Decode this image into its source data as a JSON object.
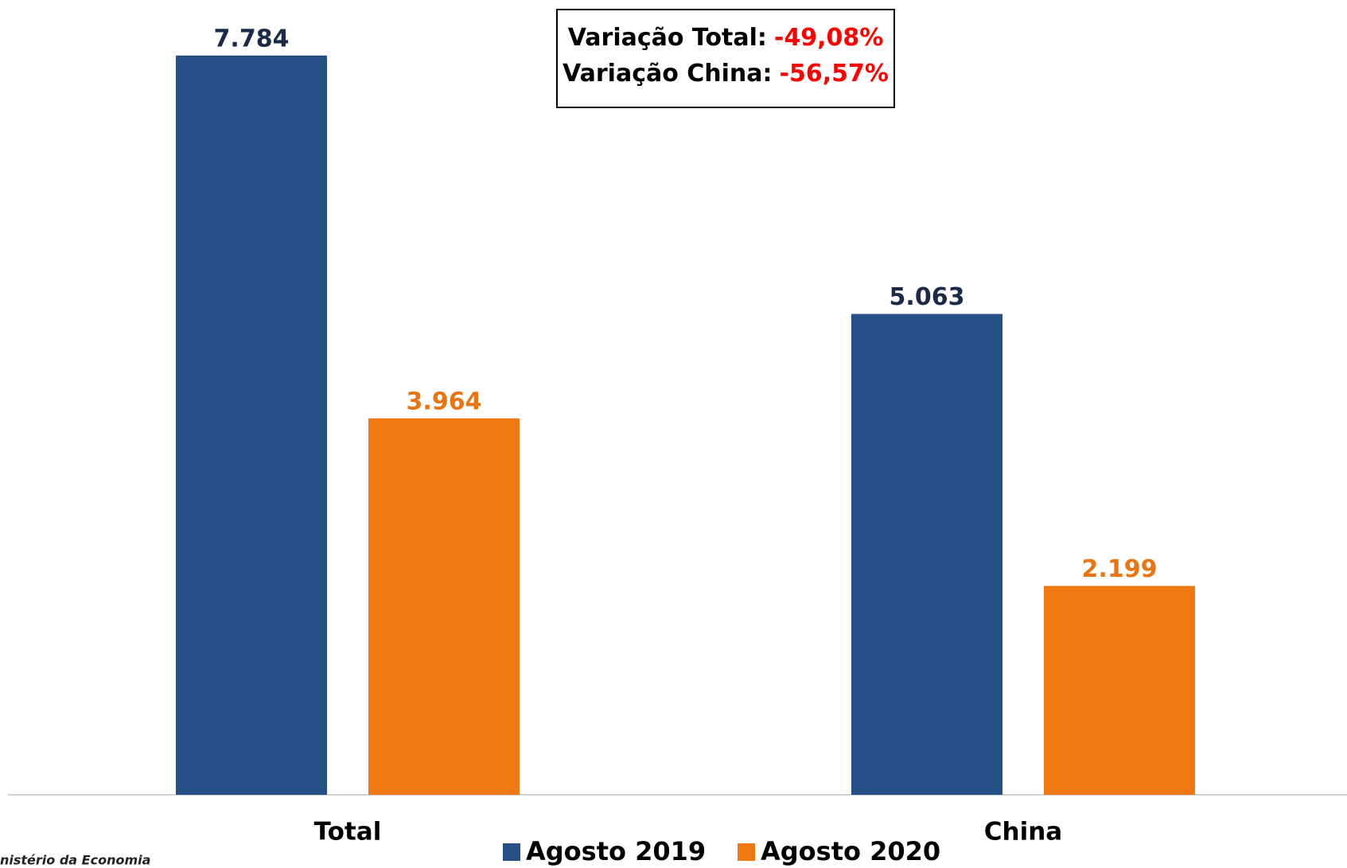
{
  "chart_data": {
    "type": "bar",
    "categories": [
      "Total",
      "China"
    ],
    "series": [
      {
        "name": "Agosto 2019",
        "color": "#265085",
        "label_color": "#1b2a47",
        "values": [
          7784,
          5063
        ],
        "value_labels": [
          "7.784",
          "5.063"
        ]
      },
      {
        "name": "Agosto 2020",
        "color": "#f07810",
        "label_color": "#e87412",
        "values": [
          3964,
          2199
        ],
        "value_labels": [
          "3.964",
          "2.199"
        ]
      }
    ],
    "ylim": [
      0,
      8000
    ],
    "annotation": {
      "lines": [
        {
          "label": "Variação Total:",
          "value": "-49,08%"
        },
        {
          "label": "Variação China:",
          "value": "-56,57%"
        }
      ]
    },
    "source": "nistério da Economia"
  }
}
